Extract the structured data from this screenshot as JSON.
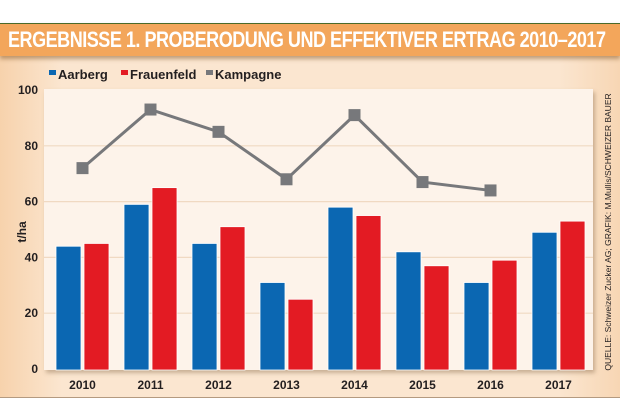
{
  "title": "ERGEBNISSE 1. PROBERODUNG UND EFFEKTIVER ERTRAG 2010–2017",
  "source_note": "QUELLE: Schweizer Zucker AG; GRAFIK: M.Mullis/SCHWEIZER BAUER",
  "colors": {
    "title_bar": "#f3a65b",
    "aarberg": "#0b67b2",
    "frauenfeld": "#e31b23",
    "kampagne": "#77787b",
    "plot_bg": "#fdf3ea",
    "gridline": "#f0d9c2"
  },
  "chart_data": {
    "type": "bar",
    "title": "ERGEBNISSE 1. PROBERODUNG UND EFFEKTIVER ERTRAG 2010–2017",
    "xlabel": "",
    "ylabel": "t/ha",
    "ylim": [
      0,
      100
    ],
    "yticks": [
      0,
      20,
      40,
      60,
      80,
      100
    ],
    "grid": true,
    "legend_position": "top-left",
    "categories": [
      "2010",
      "2011",
      "2012",
      "2013",
      "2014",
      "2015",
      "2016",
      "2017"
    ],
    "series": [
      {
        "name": "Aarberg",
        "type": "bar",
        "values": [
          44,
          59,
          45,
          31,
          58,
          42,
          31,
          49
        ]
      },
      {
        "name": "Frauenfeld",
        "type": "bar",
        "values": [
          45,
          65,
          51,
          25,
          55,
          37,
          39,
          53
        ]
      },
      {
        "name": "Kampagne",
        "type": "line",
        "marker": "square",
        "values": [
          72,
          93,
          85,
          68,
          91,
          67,
          64,
          null
        ]
      }
    ]
  }
}
